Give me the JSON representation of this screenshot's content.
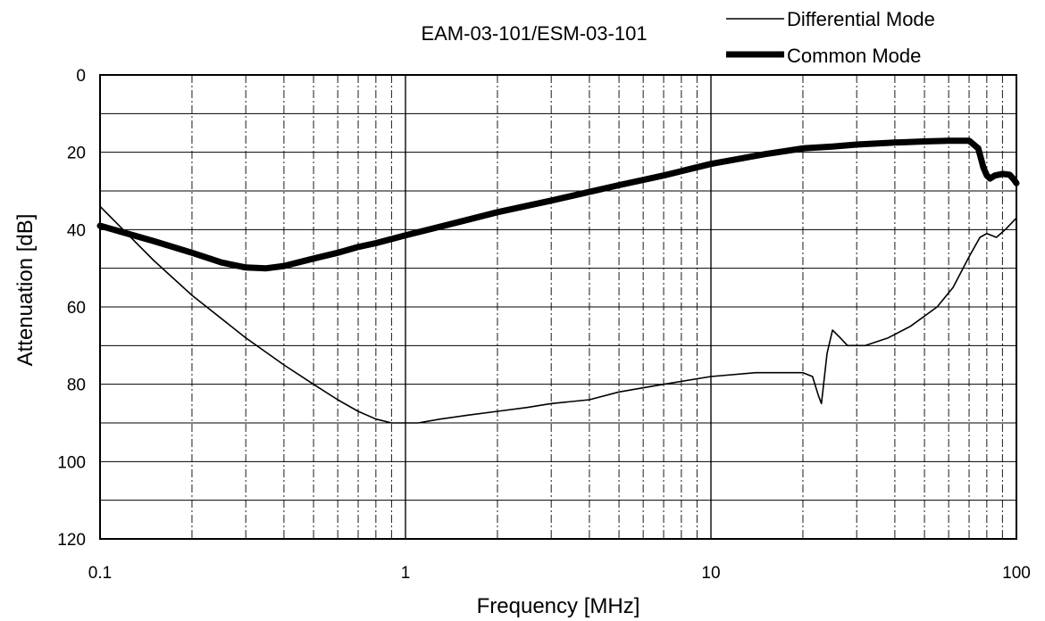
{
  "chart_data": {
    "type": "line",
    "title": "EAM-03-101/ESM-03-101",
    "xlabel": "Frequency [MHz]",
    "ylabel": "Attenuation [dB]",
    "xscale": "log",
    "xlim": [
      0.1,
      100
    ],
    "ylim": [
      0,
      120
    ],
    "y_inverted": true,
    "grid": true,
    "legend_position": "top-right",
    "x_ticks": [
      {
        "value": 0.1,
        "label": "0.1"
      },
      {
        "value": 1,
        "label": "1"
      },
      {
        "value": 10,
        "label": "10"
      },
      {
        "value": 100,
        "label": "100"
      }
    ],
    "y_ticks": [
      {
        "value": 0,
        "label": "0"
      },
      {
        "value": 20,
        "label": "20"
      },
      {
        "value": 40,
        "label": "40"
      },
      {
        "value": 60,
        "label": "60"
      },
      {
        "value": 80,
        "label": "80"
      },
      {
        "value": 100,
        "label": "100"
      },
      {
        "value": 120,
        "label": "120"
      }
    ],
    "series": [
      {
        "name": "Differential Mode",
        "style": "thin",
        "color": "#000000",
        "points": [
          [
            0.1,
            34
          ],
          [
            0.15,
            48
          ],
          [
            0.2,
            57
          ],
          [
            0.3,
            68
          ],
          [
            0.4,
            75
          ],
          [
            0.5,
            80
          ],
          [
            0.6,
            84
          ],
          [
            0.7,
            87
          ],
          [
            0.8,
            89
          ],
          [
            0.9,
            90
          ],
          [
            1.0,
            90
          ],
          [
            1.1,
            90
          ],
          [
            1.3,
            89
          ],
          [
            1.6,
            88
          ],
          [
            2.0,
            87
          ],
          [
            2.5,
            86
          ],
          [
            3.0,
            85
          ],
          [
            4.0,
            84
          ],
          [
            5.0,
            82
          ],
          [
            7.0,
            80
          ],
          [
            10.0,
            78
          ],
          [
            14.0,
            77
          ],
          [
            18.0,
            77
          ],
          [
            20.0,
            77
          ],
          [
            21.5,
            78
          ],
          [
            22.5,
            83
          ],
          [
            23.0,
            85
          ],
          [
            24.0,
            72
          ],
          [
            25.0,
            66
          ],
          [
            26.5,
            68
          ],
          [
            28.0,
            70
          ],
          [
            32.0,
            70
          ],
          [
            38.0,
            68
          ],
          [
            45.0,
            65
          ],
          [
            55.0,
            60
          ],
          [
            62.0,
            55
          ],
          [
            70.0,
            47
          ],
          [
            76.0,
            42
          ],
          [
            80.0,
            41
          ],
          [
            86.0,
            42
          ],
          [
            92.0,
            40
          ],
          [
            100.0,
            37
          ]
        ]
      },
      {
        "name": "Common Mode",
        "style": "thick",
        "color": "#000000",
        "points": [
          [
            0.1,
            39
          ],
          [
            0.15,
            43
          ],
          [
            0.2,
            46
          ],
          [
            0.25,
            48.5
          ],
          [
            0.3,
            49.8
          ],
          [
            0.35,
            50
          ],
          [
            0.4,
            49.4
          ],
          [
            0.5,
            47.5
          ],
          [
            0.6,
            46
          ],
          [
            0.7,
            44.5
          ],
          [
            0.8,
            43.5
          ],
          [
            1.0,
            41.5
          ],
          [
            1.5,
            38
          ],
          [
            2.0,
            35.5
          ],
          [
            3.0,
            32.5
          ],
          [
            5.0,
            28.5
          ],
          [
            7.0,
            26
          ],
          [
            10.0,
            23
          ],
          [
            15.0,
            20.5
          ],
          [
            20.0,
            19
          ],
          [
            25.0,
            18.5
          ],
          [
            30.0,
            18
          ],
          [
            40.0,
            17.5
          ],
          [
            50.0,
            17.2
          ],
          [
            60.0,
            17
          ],
          [
            70.0,
            17
          ],
          [
            75.0,
            19
          ],
          [
            78.0,
            24
          ],
          [
            80.0,
            26
          ],
          [
            82.0,
            26.8
          ],
          [
            85.0,
            26
          ],
          [
            90.0,
            25.6
          ],
          [
            95.0,
            25.8
          ],
          [
            98.0,
            27
          ],
          [
            100.0,
            28
          ]
        ]
      }
    ]
  }
}
